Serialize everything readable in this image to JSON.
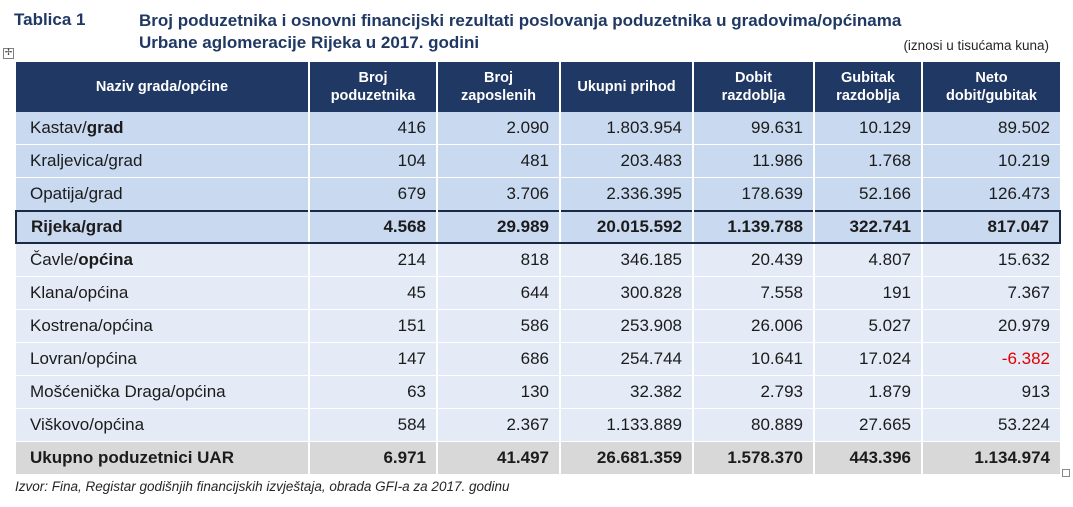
{
  "header": {
    "label": "Tablica 1",
    "title_line1": "Broj poduzetnika i osnovni financijski rezultati poslovanja poduzetnika u gradovima/općinama",
    "title_line2": "Urbane aglomeracije Rijeka u 2017. godini",
    "unit": "(iznosi u tisućama kuna)"
  },
  "table": {
    "columns": [
      "Naziv grada/općine",
      "Broj poduzetnika",
      "Broj zaposlenih",
      "Ukupni prihod",
      "Dobit razdoblja",
      "Gubitak razdoblja",
      "Neto dobit/gubitak"
    ],
    "rows": [
      {
        "name_a": "Kastav/",
        "name_b": "grad",
        "bold_b": true,
        "type": "grad",
        "vals": [
          "416",
          "2.090",
          "1.803.954",
          "99.631",
          "10.129",
          "89.502"
        ]
      },
      {
        "name_a": "Kraljevica/grad",
        "name_b": "",
        "bold_b": false,
        "type": "grad",
        "vals": [
          "104",
          "481",
          "203.483",
          "11.986",
          "1.768",
          "10.219"
        ]
      },
      {
        "name_a": "Opatija/grad",
        "name_b": "",
        "bold_b": false,
        "type": "grad",
        "vals": [
          "679",
          "3.706",
          "2.336.395",
          "178.639",
          "52.166",
          "126.473"
        ]
      },
      {
        "name_a": "Rijeka/grad",
        "name_b": "",
        "bold_b": false,
        "type": "rijeka",
        "vals": [
          "4.568",
          "29.989",
          "20.015.592",
          "1.139.788",
          "322.741",
          "817.047"
        ]
      },
      {
        "name_a": "Čavle/",
        "name_b": "općina",
        "bold_b": true,
        "type": "opcina",
        "vals": [
          "214",
          "818",
          "346.185",
          "20.439",
          "4.807",
          "15.632"
        ]
      },
      {
        "name_a": "Klana/općina",
        "name_b": "",
        "bold_b": false,
        "type": "opcina",
        "vals": [
          "45",
          "644",
          "300.828",
          "7.558",
          "191",
          "7.367"
        ]
      },
      {
        "name_a": "Kostrena/općina",
        "name_b": "",
        "bold_b": false,
        "type": "opcina",
        "vals": [
          "151",
          "586",
          "253.908",
          "26.006",
          "5.027",
          "20.979"
        ]
      },
      {
        "name_a": "Lovran/općina",
        "name_b": "",
        "bold_b": false,
        "type": "opcina",
        "vals": [
          "147",
          "686",
          "254.744",
          "10.641",
          "17.024",
          "-6.382"
        ]
      },
      {
        "name_a": "Mošćenička Draga/općina",
        "name_b": "",
        "bold_b": false,
        "type": "opcina",
        "vals": [
          "63",
          "130",
          "32.382",
          "2.793",
          "1.879",
          "913"
        ]
      },
      {
        "name_a": "Viškovo/općina",
        "name_b": "",
        "bold_b": false,
        "type": "opcina",
        "vals": [
          "584",
          "2.367",
          "1.133.889",
          "80.889",
          "27.665",
          "53.224"
        ]
      },
      {
        "name_a": "Ukupno poduzetnici UAR",
        "name_b": "",
        "bold_b": false,
        "type": "total",
        "vals": [
          "6.971",
          "41.497",
          "26.681.359",
          "1.578.370",
          "443.396",
          "1.134.974"
        ]
      }
    ]
  },
  "negative_color": "#e00000",
  "source": "Izvor: Fina, Registar godišnjih financijskih izvještaja, obrada GFI-a za 2017. godinu",
  "icons": {
    "anchor": "move-anchor-icon",
    "handle": "resize-handle-icon",
    "anchor_glyph": "✢"
  }
}
